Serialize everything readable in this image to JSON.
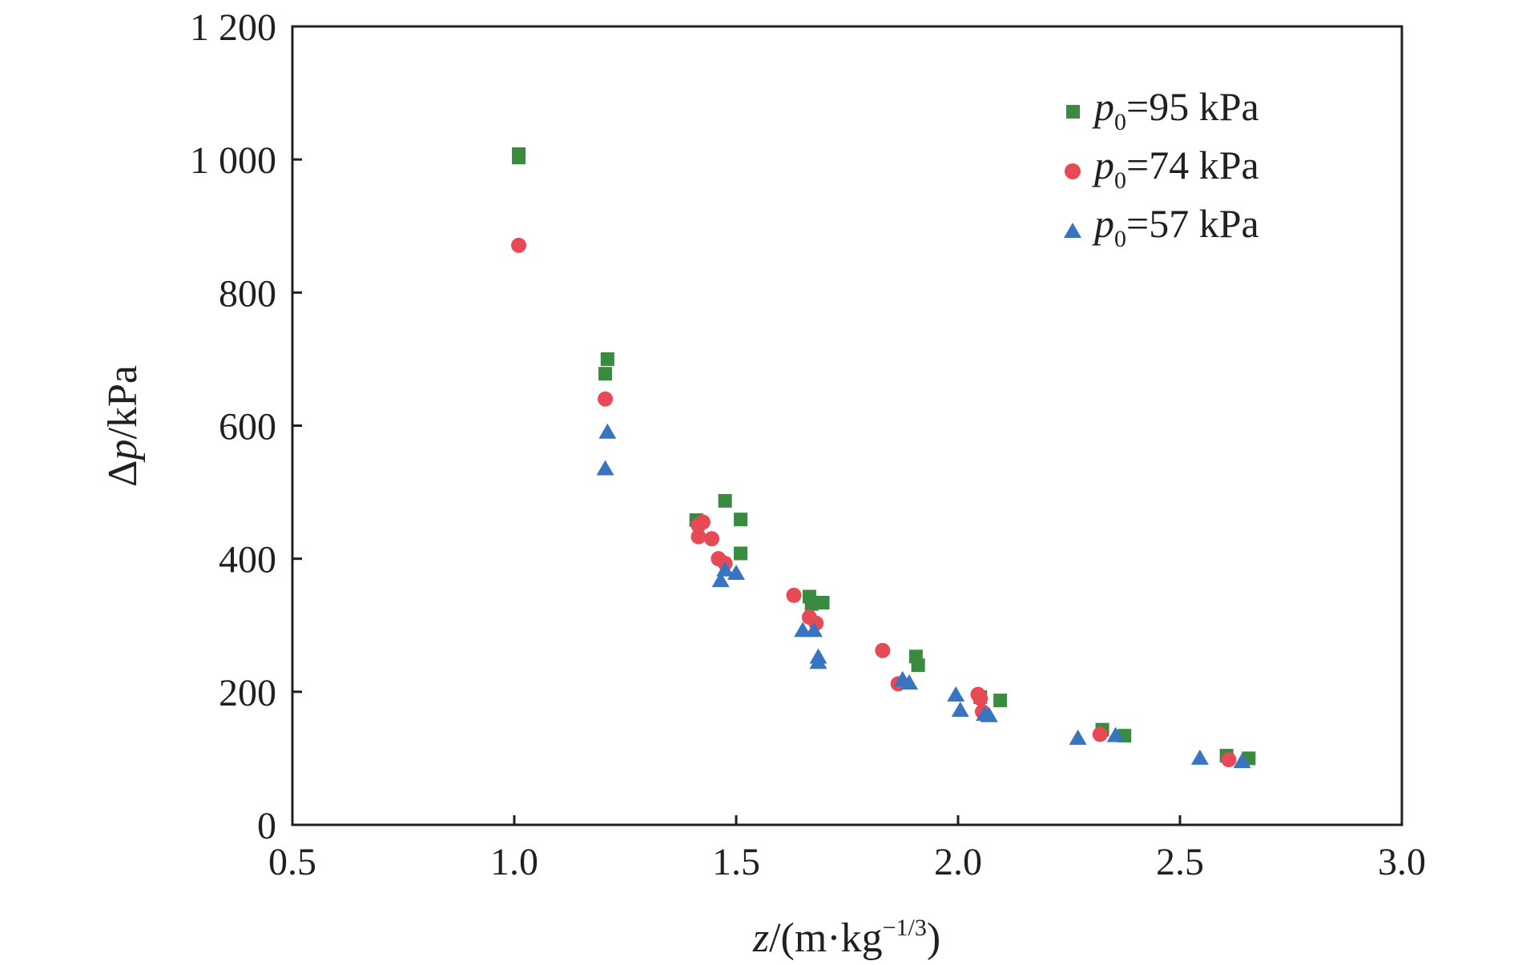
{
  "chart_data": {
    "type": "scatter",
    "title": "",
    "xlabel": {
      "var": "z",
      "rest": "/(m·kg",
      "sup": "−1/3",
      "close": ")"
    },
    "ylabel": {
      "delta": "Δ",
      "var": "p",
      "rest": "/kPa"
    },
    "xlim": [
      0.5,
      3.0
    ],
    "ylim": [
      0,
      1200
    ],
    "x_ticks": [
      0.5,
      1.0,
      1.5,
      2.0,
      2.5,
      3.0
    ],
    "x_tick_labels": [
      "0.5",
      "1.0",
      "1.5",
      "2.0",
      "2.5",
      "3.0"
    ],
    "y_ticks": [
      0,
      200,
      400,
      600,
      800,
      1000,
      1200
    ],
    "y_tick_labels": [
      "0",
      "200",
      "400",
      "600",
      "800",
      "1 000",
      "1 200"
    ],
    "grid": false,
    "legend_position": "top-right",
    "series": [
      {
        "name": "p0=95 kPa",
        "legend": {
          "var": "p",
          "sub": "0",
          "rest": "=95 kPa"
        },
        "marker": "square",
        "color": "#3a8a3f",
        "points": [
          [
            1.01,
            1008
          ],
          [
            1.01,
            1003
          ],
          [
            1.21,
            700
          ],
          [
            1.205,
            678
          ],
          [
            1.41,
            458
          ],
          [
            1.475,
            487
          ],
          [
            1.51,
            459
          ],
          [
            1.51,
            408
          ],
          [
            1.665,
            343
          ],
          [
            1.67,
            332
          ],
          [
            1.695,
            334
          ],
          [
            1.905,
            253
          ],
          [
            1.91,
            240
          ],
          [
            2.05,
            192
          ],
          [
            2.095,
            187
          ],
          [
            2.325,
            143
          ],
          [
            2.375,
            134
          ],
          [
            2.605,
            104
          ],
          [
            2.655,
            100
          ]
        ]
      },
      {
        "name": "p0=74 kPa",
        "legend": {
          "var": "p",
          "sub": "0",
          "rest": "=74 kPa"
        },
        "marker": "circle",
        "color": "#e84a55",
        "points": [
          [
            1.01,
            871
          ],
          [
            1.205,
            640
          ],
          [
            1.415,
            450
          ],
          [
            1.425,
            455
          ],
          [
            1.415,
            433
          ],
          [
            1.445,
            430
          ],
          [
            1.46,
            400
          ],
          [
            1.475,
            393
          ],
          [
            1.63,
            345
          ],
          [
            1.665,
            312
          ],
          [
            1.68,
            303
          ],
          [
            1.83,
            262
          ],
          [
            1.865,
            212
          ],
          [
            2.045,
            196
          ],
          [
            2.05,
            190
          ],
          [
            2.055,
            170
          ],
          [
            2.32,
            136
          ],
          [
            2.61,
            98
          ]
        ]
      },
      {
        "name": "p0=57 kPa",
        "legend": {
          "var": "p",
          "sub": "0",
          "rest": "=57 kPa"
        },
        "marker": "triangle",
        "color": "#3874c0",
        "points": [
          [
            1.21,
            590
          ],
          [
            1.205,
            535
          ],
          [
            1.475,
            383
          ],
          [
            1.465,
            367
          ],
          [
            1.5,
            378
          ],
          [
            1.65,
            292
          ],
          [
            1.675,
            292
          ],
          [
            1.685,
            252
          ],
          [
            1.685,
            244
          ],
          [
            1.875,
            218
          ],
          [
            1.89,
            213
          ],
          [
            1.995,
            195
          ],
          [
            2.005,
            172
          ],
          [
            2.06,
            166
          ],
          [
            2.07,
            164
          ],
          [
            2.27,
            130
          ],
          [
            2.355,
            134
          ],
          [
            2.545,
            100
          ],
          [
            2.64,
            95
          ]
        ]
      }
    ]
  }
}
